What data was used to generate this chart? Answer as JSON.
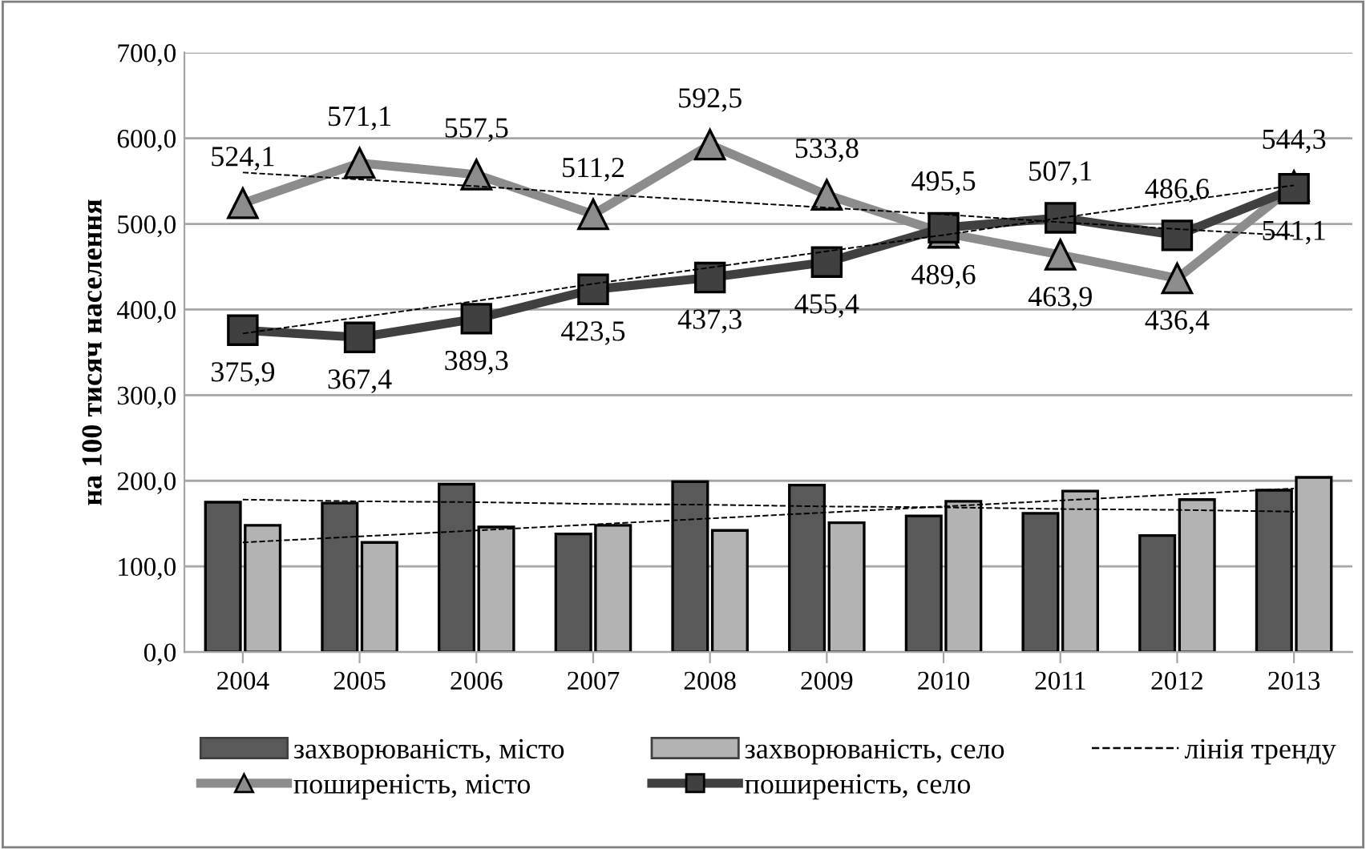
{
  "chart_data": {
    "type": "bar",
    "ylabel": "на 100 тисяч населення",
    "categories": [
      "2004",
      "2005",
      "2006",
      "2007",
      "2008",
      "2009",
      "2010",
      "2011",
      "2012",
      "2013"
    ],
    "ylim": [
      0,
      700
    ],
    "yticks": [
      {
        "value": 0,
        "label": "0,0"
      },
      {
        "value": 100,
        "label": "100,0"
      },
      {
        "value": 200,
        "label": "200,0"
      },
      {
        "value": 300,
        "label": "300,0"
      },
      {
        "value": 400,
        "label": "400,0"
      },
      {
        "value": 500,
        "label": "500,0"
      },
      {
        "value": 600,
        "label": "600,0"
      },
      {
        "value": 700,
        "label": "700,0"
      }
    ],
    "grid": "y",
    "legend": "bottom",
    "series": [
      {
        "name": "захворюваність, місто",
        "color": "#595959",
        "values": [
          175,
          174,
          196,
          138,
          199,
          195,
          159,
          162,
          136,
          189
        ]
      },
      {
        "name": "захворюваність, село",
        "color": "#b3b3b3",
        "values": [
          148,
          128,
          146,
          148,
          142,
          151,
          176,
          188,
          178,
          204
        ]
      },
      {
        "name": "поширеність, місто",
        "type": "line",
        "color": "#8c8c8c",
        "marker": "triangle",
        "values": [
          524.1,
          571.1,
          557.5,
          511.2,
          592.5,
          533.8,
          489.6,
          463.9,
          436.4,
          544.3
        ],
        "value_labels": [
          "524,1",
          "571,1",
          "557,5",
          "511,2",
          "592,5",
          "533,8",
          "489,6",
          "463,9",
          "436,4",
          "544,3"
        ]
      },
      {
        "name": "поширеність, село",
        "type": "line",
        "color": "#404040",
        "marker": "square",
        "values": [
          375.9,
          367.4,
          389.3,
          423.5,
          437.3,
          455.4,
          495.5,
          507.1,
          486.6,
          541.1
        ],
        "value_labels": [
          "375,9",
          "367,4",
          "389,3",
          "423,5",
          "437,3",
          "455,4",
          "495,5",
          "507,1",
          "486,6",
          "541,1"
        ]
      },
      {
        "name": "лінія тренду",
        "type": "line",
        "color": "#000000",
        "line_style": "dashed",
        "marker": "none",
        "values": [
          560,
          552,
          544,
          535,
          527,
          519,
          511,
          502,
          494,
          486
        ]
      },
      {
        "type": "line",
        "color": "#000000",
        "line_style": "dashed",
        "marker": "none",
        "values": [
          372,
          391,
          410,
          430,
          449,
          468,
          487,
          507,
          526,
          545
        ]
      },
      {
        "type": "line",
        "color": "#000000",
        "line_style": "dashed",
        "marker": "none",
        "values": [
          178,
          176,
          175,
          173,
          172,
          170,
          169,
          167,
          166,
          164
        ]
      },
      {
        "type": "line",
        "color": "#000000",
        "line_style": "dashed",
        "marker": "none",
        "values": [
          128,
          135,
          142,
          149,
          156,
          163,
          170,
          177,
          184,
          191
        ]
      }
    ]
  }
}
